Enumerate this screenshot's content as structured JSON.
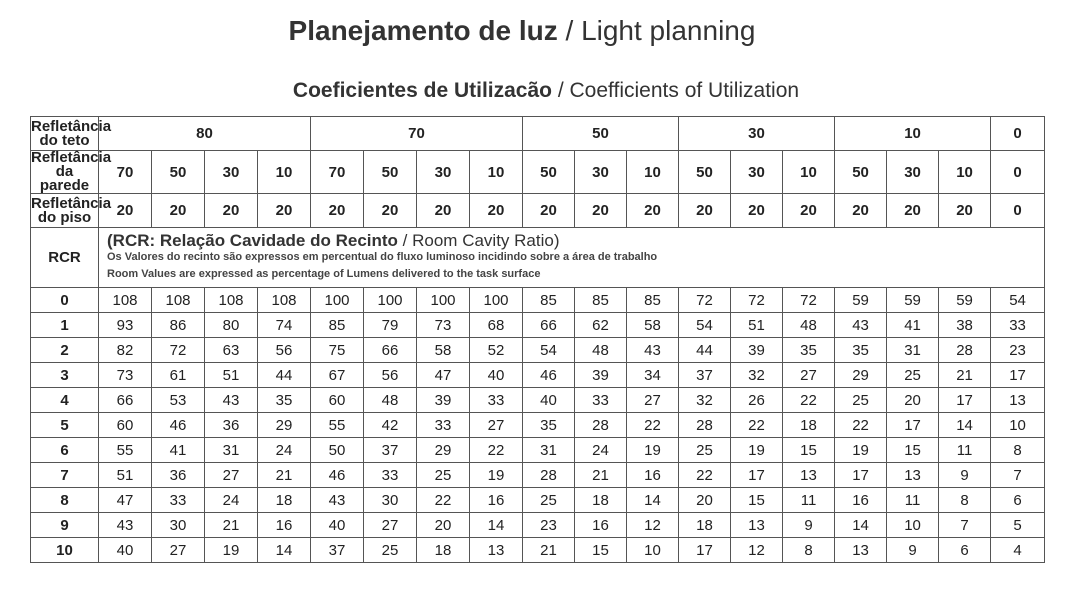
{
  "title": {
    "bold": "Planejamento de luz",
    "sep": " / ",
    "rest": "Light planning"
  },
  "subtitle": {
    "bold": "Coeficientes de Utilizacão",
    "sep": " / ",
    "rest": "Coefficients of Utilization"
  },
  "labels": {
    "ceiling": [
      "Refletância",
      "do teto"
    ],
    "wall": [
      "Refletância",
      "da parede"
    ],
    "floor": [
      "Refletância",
      "do piso"
    ],
    "rcr": "RCR"
  },
  "note": {
    "title_bold": "(RCR: Relação Cavidade do Recinto",
    "title_sep": " / ",
    "title_rest": "Room Cavity Ratio)",
    "line1": "Os Valores do recinto são expressos em percentual do fluxo luminoso incidindo sobre a área de trabalho",
    "line2": "Room Values are expressed as percentage of Lumens delivered to the task surface"
  },
  "ceiling_values": [
    "80",
    "70",
    "50",
    "30",
    "10",
    "0"
  ],
  "wall_values": [
    "70",
    "50",
    "30",
    "10",
    "70",
    "50",
    "30",
    "10",
    "50",
    "30",
    "10",
    "50",
    "30",
    "10",
    "50",
    "30",
    "10",
    "0"
  ],
  "floor_values": [
    "20",
    "20",
    "20",
    "20",
    "20",
    "20",
    "20",
    "20",
    "20",
    "20",
    "20",
    "20",
    "20",
    "20",
    "20",
    "20",
    "20",
    "0"
  ],
  "rows": [
    {
      "rcr": "0",
      "v": [
        "108",
        "108",
        "108",
        "108",
        "100",
        "100",
        "100",
        "100",
        "85",
        "85",
        "85",
        "72",
        "72",
        "72",
        "59",
        "59",
        "59",
        "54"
      ]
    },
    {
      "rcr": "1",
      "v": [
        "93",
        "86",
        "80",
        "74",
        "85",
        "79",
        "73",
        "68",
        "66",
        "62",
        "58",
        "54",
        "51",
        "48",
        "43",
        "41",
        "38",
        "33"
      ]
    },
    {
      "rcr": "2",
      "v": [
        "82",
        "72",
        "63",
        "56",
        "75",
        "66",
        "58",
        "52",
        "54",
        "48",
        "43",
        "44",
        "39",
        "35",
        "35",
        "31",
        "28",
        "23"
      ]
    },
    {
      "rcr": "3",
      "v": [
        "73",
        "61",
        "51",
        "44",
        "67",
        "56",
        "47",
        "40",
        "46",
        "39",
        "34",
        "37",
        "32",
        "27",
        "29",
        "25",
        "21",
        "17"
      ]
    },
    {
      "rcr": "4",
      "v": [
        "66",
        "53",
        "43",
        "35",
        "60",
        "48",
        "39",
        "33",
        "40",
        "33",
        "27",
        "32",
        "26",
        "22",
        "25",
        "20",
        "17",
        "13"
      ]
    },
    {
      "rcr": "5",
      "v": [
        "60",
        "46",
        "36",
        "29",
        "55",
        "42",
        "33",
        "27",
        "35",
        "28",
        "22",
        "28",
        "22",
        "18",
        "22",
        "17",
        "14",
        "10"
      ]
    },
    {
      "rcr": "6",
      "v": [
        "55",
        "41",
        "31",
        "24",
        "50",
        "37",
        "29",
        "22",
        "31",
        "24",
        "19",
        "25",
        "19",
        "15",
        "19",
        "15",
        "11",
        "8"
      ]
    },
    {
      "rcr": "7",
      "v": [
        "51",
        "36",
        "27",
        "21",
        "46",
        "33",
        "25",
        "19",
        "28",
        "21",
        "16",
        "22",
        "17",
        "13",
        "17",
        "13",
        "9",
        "7"
      ]
    },
    {
      "rcr": "8",
      "v": [
        "47",
        "33",
        "24",
        "18",
        "43",
        "30",
        "22",
        "16",
        "25",
        "18",
        "14",
        "20",
        "15",
        "11",
        "16",
        "11",
        "8",
        "6"
      ]
    },
    {
      "rcr": "9",
      "v": [
        "43",
        "30",
        "21",
        "16",
        "40",
        "27",
        "20",
        "14",
        "23",
        "16",
        "12",
        "18",
        "13",
        "9",
        "14",
        "10",
        "7",
        "5"
      ]
    },
    {
      "rcr": "10",
      "v": [
        "40",
        "27",
        "19",
        "14",
        "37",
        "25",
        "18",
        "13",
        "21",
        "15",
        "10",
        "17",
        "12",
        "8",
        "13",
        "9",
        "6",
        "4"
      ]
    }
  ]
}
